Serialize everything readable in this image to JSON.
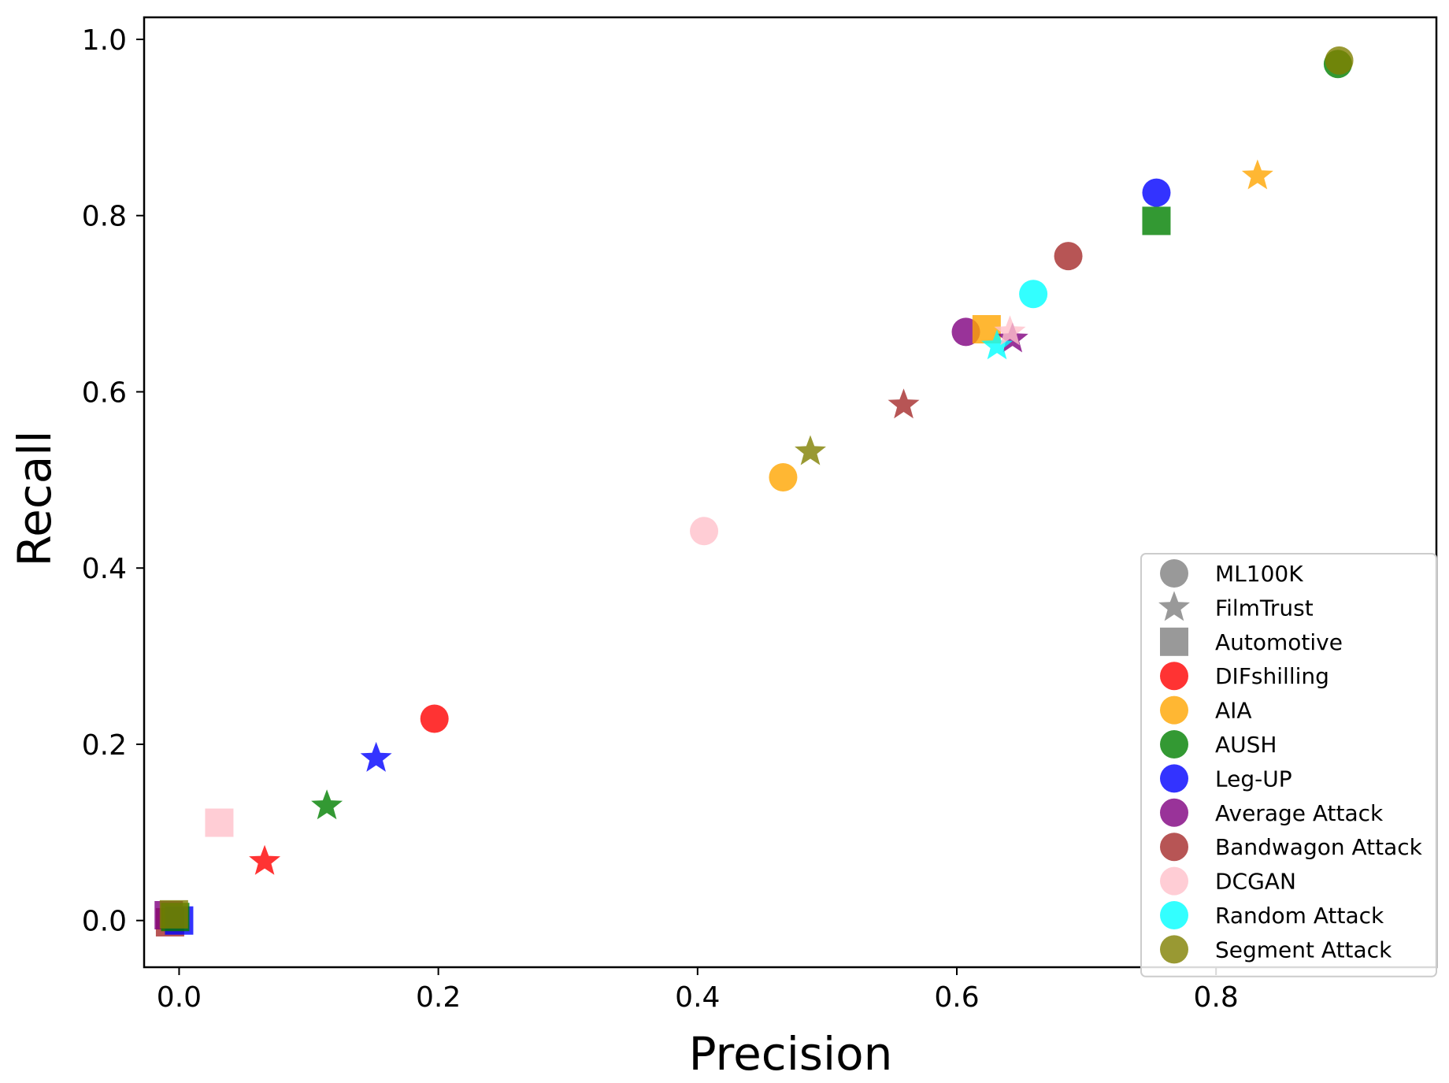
{
  "chart_data": {
    "type": "scatter",
    "xlabel": "Precision",
    "ylabel": "Recall",
    "xlim": [
      -0.027,
      0.97
    ],
    "ylim": [
      -0.053,
      1.025
    ],
    "x_ticks": [
      0.0,
      0.2,
      0.4,
      0.6,
      0.8
    ],
    "x_tick_labels": [
      "0.0",
      "0.2",
      "0.4",
      "0.6",
      "0.8"
    ],
    "y_ticks": [
      0.0,
      0.2,
      0.4,
      0.6,
      0.8,
      1.0
    ],
    "y_tick_labels": [
      "0.0",
      "0.2",
      "0.4",
      "0.6",
      "0.8",
      "1.0"
    ],
    "grid": false,
    "legend_position": "lower-right",
    "marker_legend": [
      {
        "label": "ML100K",
        "marker": "circle"
      },
      {
        "label": "FilmTrust",
        "marker": "star"
      },
      {
        "label": "Automotive",
        "marker": "square"
      }
    ],
    "method_legend": [
      {
        "label": "DIFshilling",
        "color": "#ff0000"
      },
      {
        "label": "AIA",
        "color": "#ffa500"
      },
      {
        "label": "AUSH",
        "color": "#008000"
      },
      {
        "label": "Leg-UP",
        "color": "#0000ff"
      },
      {
        "label": "Average Attack",
        "color": "#800080"
      },
      {
        "label": "Bandwagon Attack",
        "color": "#a52a2a"
      },
      {
        "label": "DCGAN",
        "color": "#ffc0cb"
      },
      {
        "label": "Random Attack",
        "color": "#00ffff"
      },
      {
        "label": "Segment Attack",
        "color": "#808000"
      }
    ],
    "points": [
      {
        "method": "Bandwagon Attack",
        "dataset": "Automotive",
        "x": -0.007,
        "y": -0.002
      },
      {
        "method": "Average Attack",
        "dataset": "Automotive",
        "x": -0.008,
        "y": 0.006
      },
      {
        "method": "Leg-UP",
        "dataset": "Automotive",
        "x": 0.0,
        "y": 0.0
      },
      {
        "method": "AUSH",
        "dataset": "Automotive",
        "x": -0.003,
        "y": 0.004
      },
      {
        "method": "Segment Attack",
        "dataset": "Automotive",
        "x": -0.004,
        "y": 0.007
      },
      {
        "method": "DCGAN",
        "dataset": "Automotive",
        "x": 0.031,
        "y": 0.111
      },
      {
        "method": "DIFshilling",
        "dataset": "FilmTrust",
        "x": 0.066,
        "y": 0.067
      },
      {
        "method": "AUSH",
        "dataset": "FilmTrust",
        "x": 0.114,
        "y": 0.13
      },
      {
        "method": "Leg-UP",
        "dataset": "FilmTrust",
        "x": 0.152,
        "y": 0.184
      },
      {
        "method": "DIFshilling",
        "dataset": "ML100K",
        "x": 0.197,
        "y": 0.229
      },
      {
        "method": "DCGAN",
        "dataset": "ML100K",
        "x": 0.405,
        "y": 0.442
      },
      {
        "method": "AIA",
        "dataset": "ML100K",
        "x": 0.466,
        "y": 0.503
      },
      {
        "method": "Segment Attack",
        "dataset": "FilmTrust",
        "x": 0.487,
        "y": 0.532
      },
      {
        "method": "Bandwagon Attack",
        "dataset": "FilmTrust",
        "x": 0.559,
        "y": 0.585
      },
      {
        "method": "Average Attack",
        "dataset": "ML100K",
        "x": 0.607,
        "y": 0.668
      },
      {
        "method": "AIA",
        "dataset": "Automotive",
        "x": 0.623,
        "y": 0.671
      },
      {
        "method": "Average Attack",
        "dataset": "FilmTrust",
        "x": 0.643,
        "y": 0.66
      },
      {
        "method": "Random Attack",
        "dataset": "FilmTrust",
        "x": 0.631,
        "y": 0.652
      },
      {
        "method": "DCGAN",
        "dataset": "FilmTrust",
        "x": 0.641,
        "y": 0.668
      },
      {
        "method": "Random Attack",
        "dataset": "ML100K",
        "x": 0.659,
        "y": 0.711
      },
      {
        "method": "Bandwagon Attack",
        "dataset": "ML100K",
        "x": 0.686,
        "y": 0.754
      },
      {
        "method": "Leg-UP",
        "dataset": "ML100K",
        "x": 0.754,
        "y": 0.826
      },
      {
        "method": "AUSH",
        "dataset": "Automotive",
        "x": 0.754,
        "y": 0.794
      },
      {
        "method": "AIA",
        "dataset": "FilmTrust",
        "x": 0.832,
        "y": 0.845
      },
      {
        "method": "AUSH",
        "dataset": "ML100K",
        "x": 0.894,
        "y": 0.972
      },
      {
        "method": "Segment Attack",
        "dataset": "ML100K",
        "x": 0.895,
        "y": 0.976
      }
    ]
  }
}
